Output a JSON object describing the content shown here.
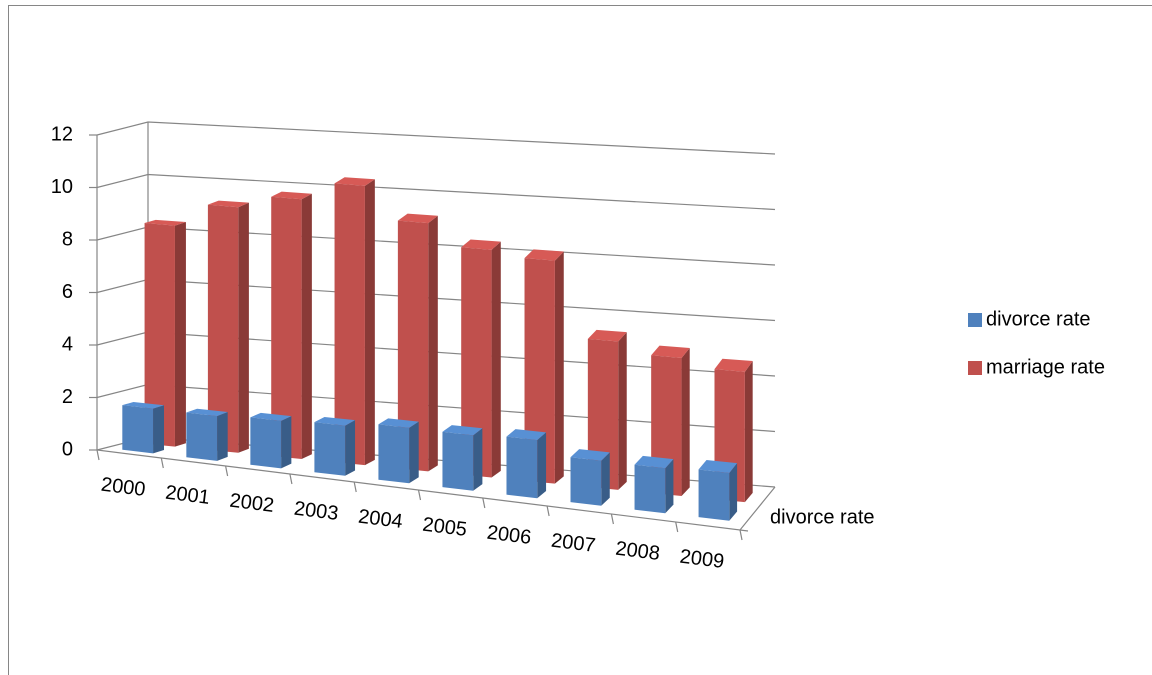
{
  "chart_data": {
    "type": "bar3d",
    "categories": [
      "2000",
      "2001",
      "2002",
      "2003",
      "2004",
      "2005",
      "2006",
      "2007",
      "2008",
      "2009"
    ],
    "series": [
      {
        "name": "divorce rate",
        "color": "#4f81bd",
        "values": [
          1.7,
          1.7,
          1.8,
          1.9,
          2.1,
          2.1,
          2.2,
          1.7,
          1.7,
          1.8
        ]
      },
      {
        "name": "marriage rate",
        "color": "#c0504d",
        "values": [
          8.4,
          9.3,
          9.8,
          10.5,
          9.3,
          8.5,
          8.3,
          5.5,
          5.1,
          4.8
        ]
      }
    ],
    "depth_ticks": [
      "divorce rate"
    ],
    "ylim": [
      0,
      12
    ],
    "yticks": [
      0,
      2,
      4,
      6,
      8,
      10,
      12
    ],
    "grid": true,
    "legend": "right"
  }
}
